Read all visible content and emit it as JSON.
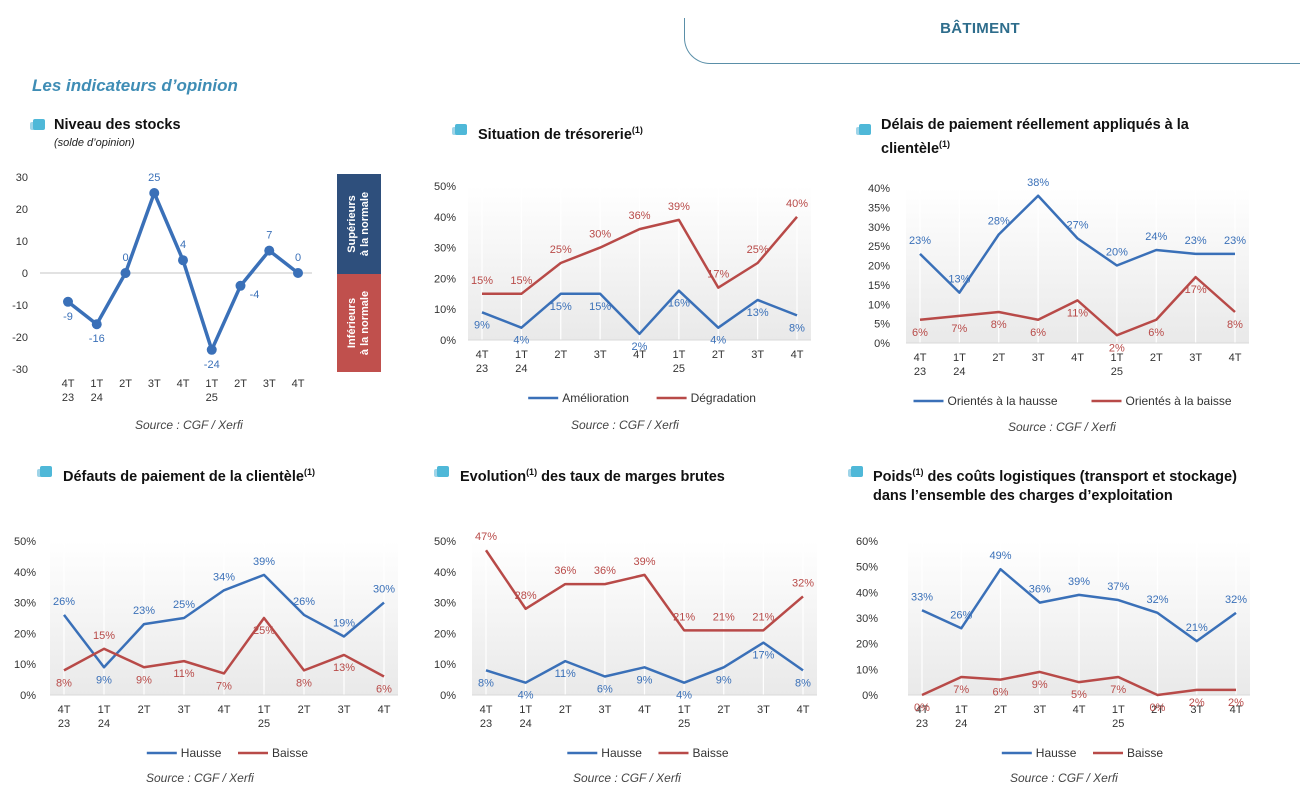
{
  "header": {
    "section_tab": "BÂTIMENT",
    "section_title": "Les indicateurs d’opinion"
  },
  "colors": {
    "blue": "#3a70b8",
    "red": "#b84a48",
    "grid": "#d9d9d9",
    "band_blue": "#2e4f7c",
    "band_red": "#c0504d"
  },
  "panels": {
    "stocks": {
      "title": "Niveau des stocks",
      "subtitle": "(solde d’opinion)",
      "source": "Source : CGF / Xerfi",
      "band_top": "Supérieurs\nà la normale",
      "band_bottom": "Inférieurs\nà la normale"
    },
    "tresorerie": {
      "title": "Situation de trésorerie",
      "sup": "(1)",
      "source": "Source : CGF / Xerfi"
    },
    "delais": {
      "title_line1": "Délais de paiement réellement appliqués à la",
      "title_line2": "clientèle",
      "sup": "(1)",
      "source": "Source : CGF / Xerfi"
    },
    "defauts": {
      "title": "Défauts de paiement de la clientèle",
      "sup": "(1)",
      "source": "Source : CGF / Xerfi"
    },
    "marges": {
      "title_a": "Evolution",
      "sup": "(1)",
      "title_b": " des taux de marges brutes",
      "source": "Source : CGF / Xerfi"
    },
    "logistique": {
      "title_a": "Poids",
      "sup": "(1)",
      "title_b": " des coûts logistiques (transport et stockage)",
      "title_line2": "dans l’ensemble des charges d’exploitation",
      "source": "Source : CGF / Xerfi"
    }
  },
  "chart_data": [
    {
      "id": "stocks",
      "type": "line",
      "title": "Niveau des stocks",
      "categories": [
        "4T\n23",
        "1T\n24",
        "2T",
        "3T",
        "4T",
        "1T\n25",
        "2T",
        "3T",
        "4T"
      ],
      "ylim": [
        -30,
        30
      ],
      "yticks": [
        -30,
        -20,
        -10,
        0,
        10,
        20,
        30
      ],
      "percent": false,
      "series": [
        {
          "name": "Niveau des stocks",
          "color": "#3a70b8",
          "values": [
            -9,
            -16,
            0,
            25,
            4,
            -24,
            -4,
            7,
            0
          ]
        }
      ]
    },
    {
      "id": "tresorerie",
      "type": "line",
      "title": "Situation de trésorerie",
      "categories": [
        "4T\n23",
        "1T\n24",
        "2T",
        "3T",
        "4T",
        "1T\n25",
        "2T",
        "3T",
        "4T"
      ],
      "ylim": [
        0,
        50
      ],
      "yticks": [
        0,
        10,
        20,
        30,
        40,
        50
      ],
      "percent": true,
      "series": [
        {
          "name": "Amélioration",
          "color": "#3a70b8",
          "values": [
            9,
            4,
            15,
            15,
            2,
            16,
            4,
            13,
            8
          ]
        },
        {
          "name": "Dégradation",
          "color": "#b84a48",
          "values": [
            15,
            15,
            25,
            30,
            36,
            39,
            17,
            25,
            40
          ]
        }
      ]
    },
    {
      "id": "delais",
      "type": "line",
      "title": "Délais de paiement réellement appliqués à la clientèle",
      "categories": [
        "4T\n23",
        "1T\n24",
        "2T",
        "3T",
        "4T",
        "1T\n25",
        "2T",
        "3T",
        "4T"
      ],
      "ylim": [
        0,
        40
      ],
      "yticks": [
        0,
        5,
        10,
        15,
        20,
        25,
        30,
        35,
        40
      ],
      "percent": true,
      "series": [
        {
          "name": "Orientés à la hausse",
          "color": "#3a70b8",
          "values": [
            23,
            13,
            28,
            38,
            27,
            20,
            24,
            23,
            23
          ]
        },
        {
          "name": "Orientés à la baisse",
          "color": "#b84a48",
          "values": [
            6,
            7,
            8,
            6,
            11,
            2,
            6,
            17,
            8
          ]
        }
      ]
    },
    {
      "id": "defauts",
      "type": "line",
      "title": "Défauts de paiement de la clientèle",
      "categories": [
        "4T\n23",
        "1T\n24",
        "2T",
        "3T",
        "4T",
        "1T\n25",
        "2T",
        "3T",
        "4T"
      ],
      "ylim": [
        0,
        50
      ],
      "yticks": [
        0,
        10,
        20,
        30,
        40,
        50
      ],
      "percent": true,
      "series": [
        {
          "name": "Hausse",
          "color": "#3a70b8",
          "values": [
            26,
            9,
            23,
            25,
            34,
            39,
            26,
            19,
            30
          ]
        },
        {
          "name": "Baisse",
          "color": "#b84a48",
          "values": [
            8,
            15,
            9,
            11,
            7,
            25,
            8,
            13,
            6
          ]
        }
      ]
    },
    {
      "id": "marges",
      "type": "line",
      "title": "Evolution des taux de marges brutes",
      "categories": [
        "4T\n23",
        "1T\n24",
        "2T",
        "3T",
        "4T",
        "1T\n25",
        "2T",
        "3T",
        "4T"
      ],
      "ylim": [
        0,
        50
      ],
      "yticks": [
        0,
        10,
        20,
        30,
        40,
        50
      ],
      "percent": true,
      "series": [
        {
          "name": "Hausse",
          "color": "#3a70b8",
          "values": [
            8,
            4,
            11,
            6,
            9,
            4,
            9,
            17,
            8
          ]
        },
        {
          "name": "Baisse",
          "color": "#b84a48",
          "values": [
            47,
            28,
            36,
            36,
            39,
            21,
            21,
            21,
            32
          ]
        }
      ]
    },
    {
      "id": "logistique",
      "type": "line",
      "title": "Poids des coûts logistiques (transport et stockage) dans l’ensemble des charges d’exploitation",
      "categories": [
        "4T\n23",
        "1T\n24",
        "2T",
        "3T",
        "4T",
        "1T\n25",
        "2T",
        "3T",
        "4T"
      ],
      "ylim": [
        0,
        60
      ],
      "yticks": [
        0,
        10,
        20,
        30,
        40,
        50,
        60
      ],
      "percent": true,
      "series": [
        {
          "name": "Hausse",
          "color": "#3a70b8",
          "values": [
            33,
            26,
            49,
            36,
            39,
            37,
            32,
            21,
            32
          ]
        },
        {
          "name": "Baisse",
          "color": "#b84a48",
          "values": [
            0,
            7,
            6,
            9,
            5,
            7,
            0,
            2,
            2
          ]
        }
      ]
    }
  ]
}
